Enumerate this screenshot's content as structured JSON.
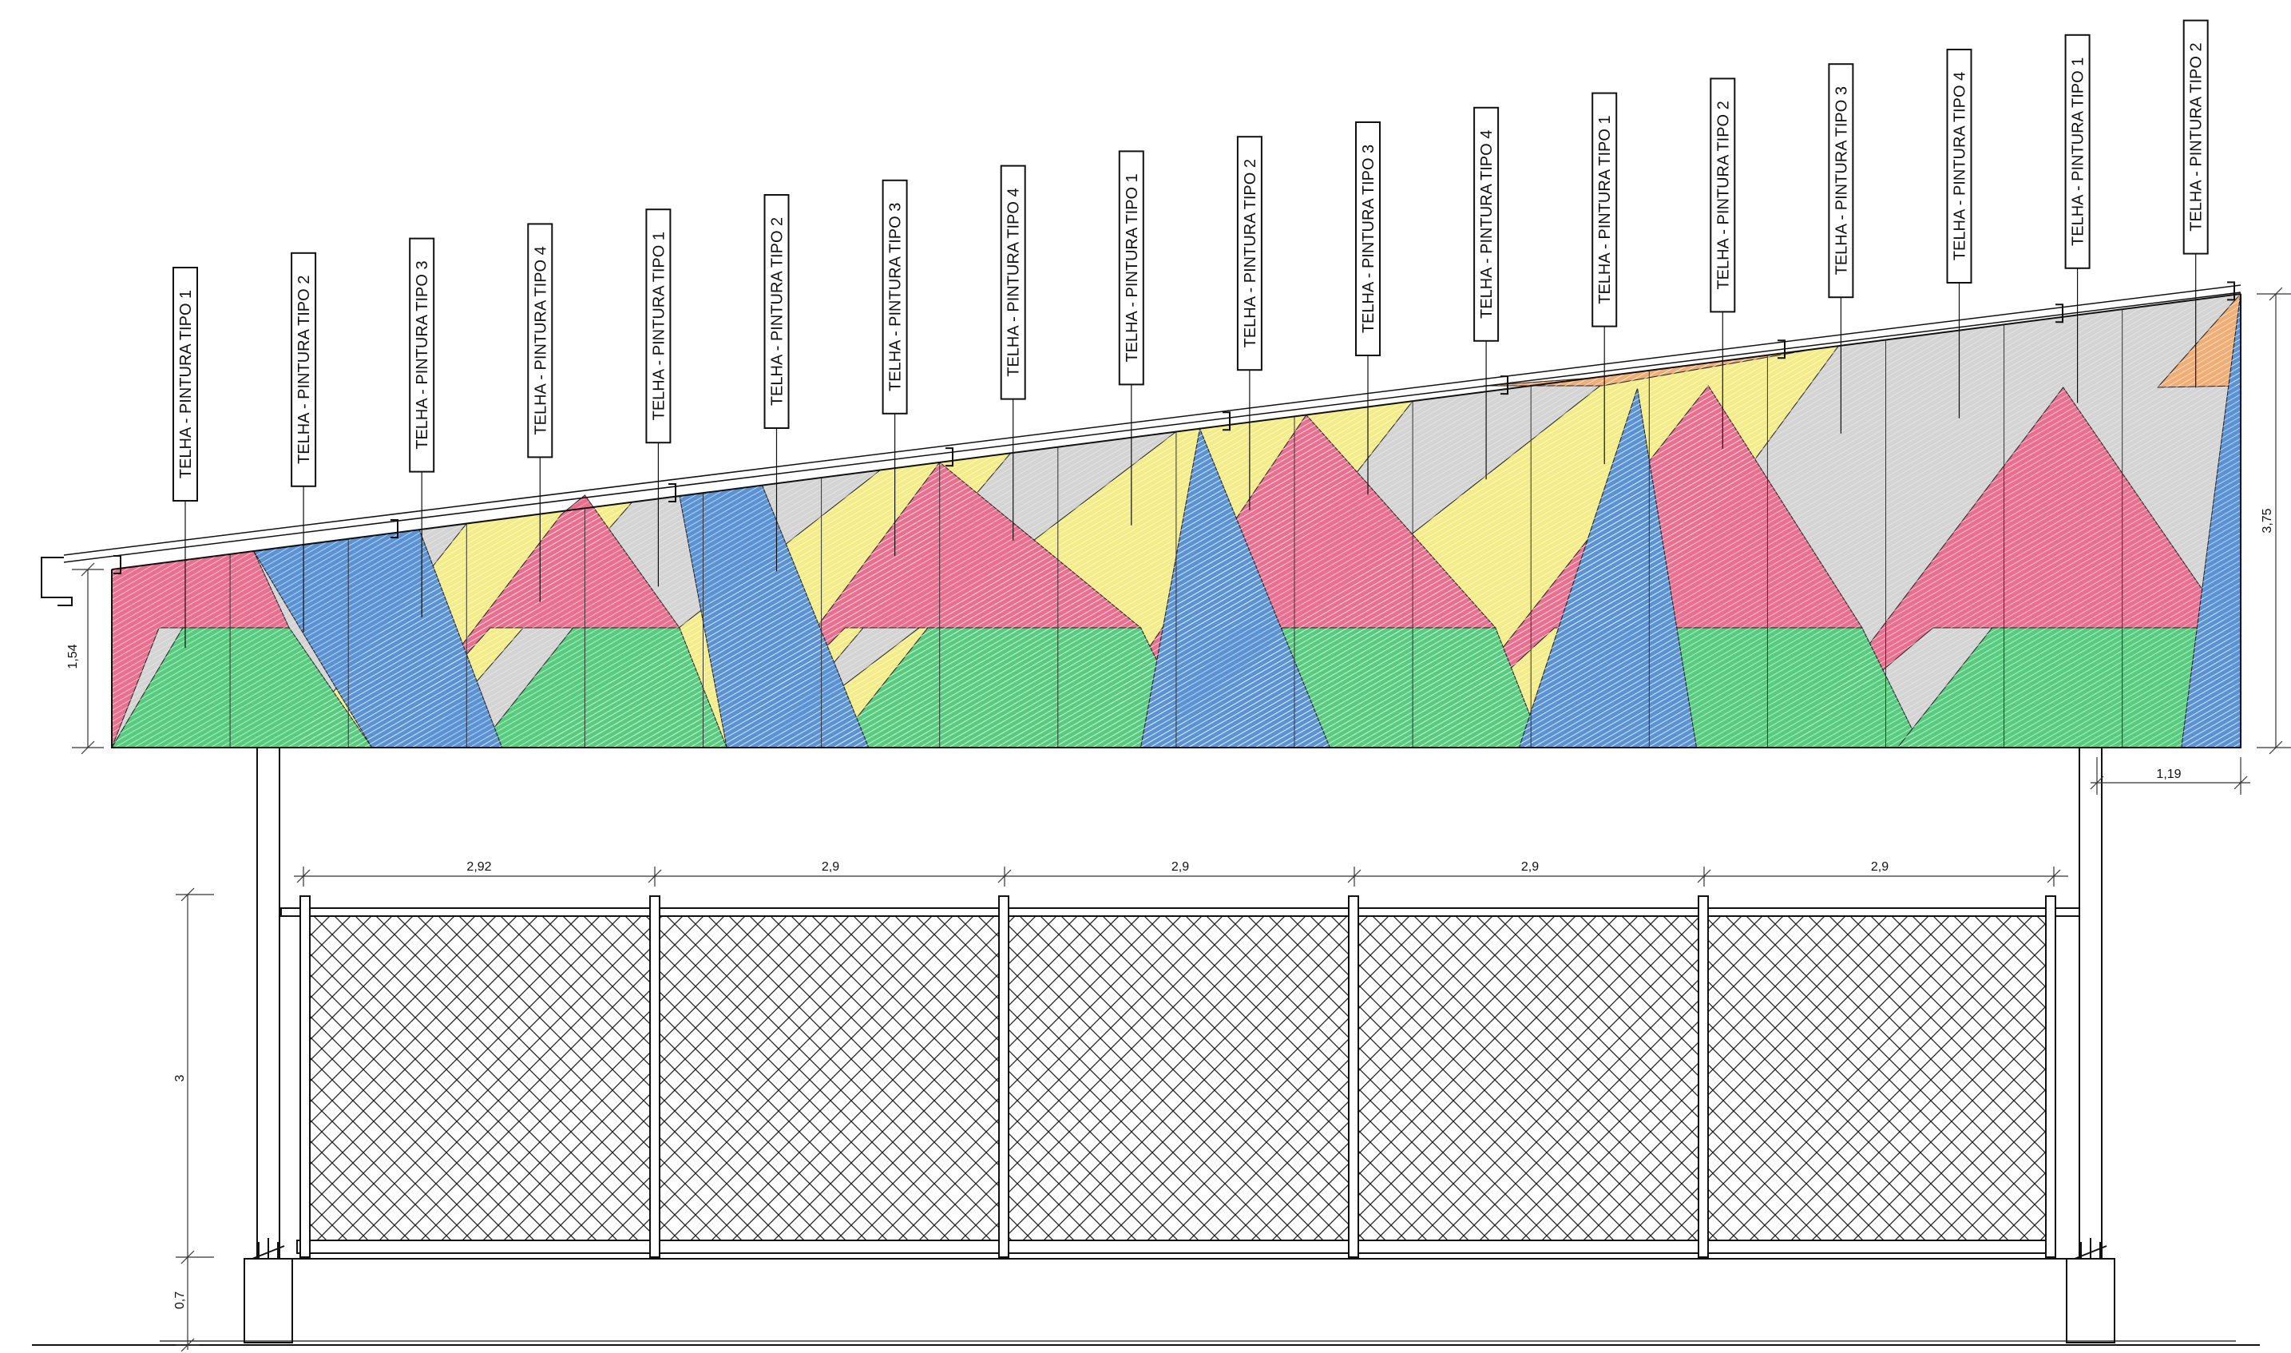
{
  "drawing": {
    "type": "elevation",
    "colors": {
      "tipo1": "#ec6e8e",
      "tipo2": "#f2ad74",
      "tipo3": "#d4d4d4",
      "tipo4": "#f4ec86",
      "blue": "#5a92d6",
      "green": "#56cc7e"
    },
    "tags": [
      {
        "text": "TELHA - PINTURA TIPO 1"
      },
      {
        "text": "TELHA - PINTURA TIPO 2"
      },
      {
        "text": "TELHA - PINTURA TIPO 3"
      },
      {
        "text": "TELHA - PINTURA TIPO 4"
      },
      {
        "text": "TELHA - PINTURA TIPO 1"
      },
      {
        "text": "TELHA - PINTURA TIPO 2"
      },
      {
        "text": "TELHA - PINTURA TIPO 3"
      },
      {
        "text": "TELHA - PINTURA TIPO 4"
      },
      {
        "text": "TELHA - PINTURA TIPO 1"
      },
      {
        "text": "TELHA - PINTURA TIPO 2"
      },
      {
        "text": "TELHA - PINTURA TIPO 3"
      },
      {
        "text": "TELHA - PINTURA TIPO 4"
      },
      {
        "text": "TELHA - PINTURA TIPO 1"
      },
      {
        "text": "TELHA - PINTURA TIPO 2"
      },
      {
        "text": "TELHA - PINTURA TIPO 3"
      },
      {
        "text": "TELHA - PINTURA TIPO 4"
      },
      {
        "text": "TELHA - PINTURA TIPO 1"
      },
      {
        "text": "TELHA - PINTURA TIPO 2"
      }
    ],
    "dimensions": {
      "left_height": "1,54",
      "right_height": "3,75",
      "overhang": "1,19",
      "bay_widths": [
        "2,92",
        "2,9",
        "2,9",
        "2,9",
        "2,9"
      ],
      "fence_height": "3",
      "base_height": "0,7"
    }
  }
}
